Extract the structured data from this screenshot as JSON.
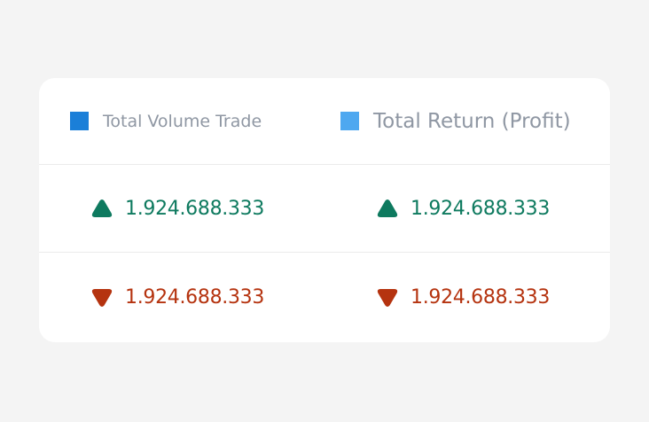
{
  "colors": {
    "volume_swatch": "#1b7fd8",
    "return_swatch": "#4ea8f0",
    "up": "#0e7a5f",
    "down": "#b5330f",
    "legend_text": "#8f97a3"
  },
  "legend": [
    {
      "label": "Total Volume Trade",
      "swatch_color": "#1b7fd8"
    },
    {
      "label": "Total Return (Profit)",
      "swatch_color": "#4ea8f0"
    }
  ],
  "rows": [
    {
      "trend": "up",
      "icon": "triangle-up-icon",
      "values": [
        "1.924.688.333",
        "1.924.688.333"
      ]
    },
    {
      "trend": "down",
      "icon": "triangle-down-icon",
      "values": [
        "1.924.688.333",
        "1.924.688.333"
      ]
    }
  ]
}
